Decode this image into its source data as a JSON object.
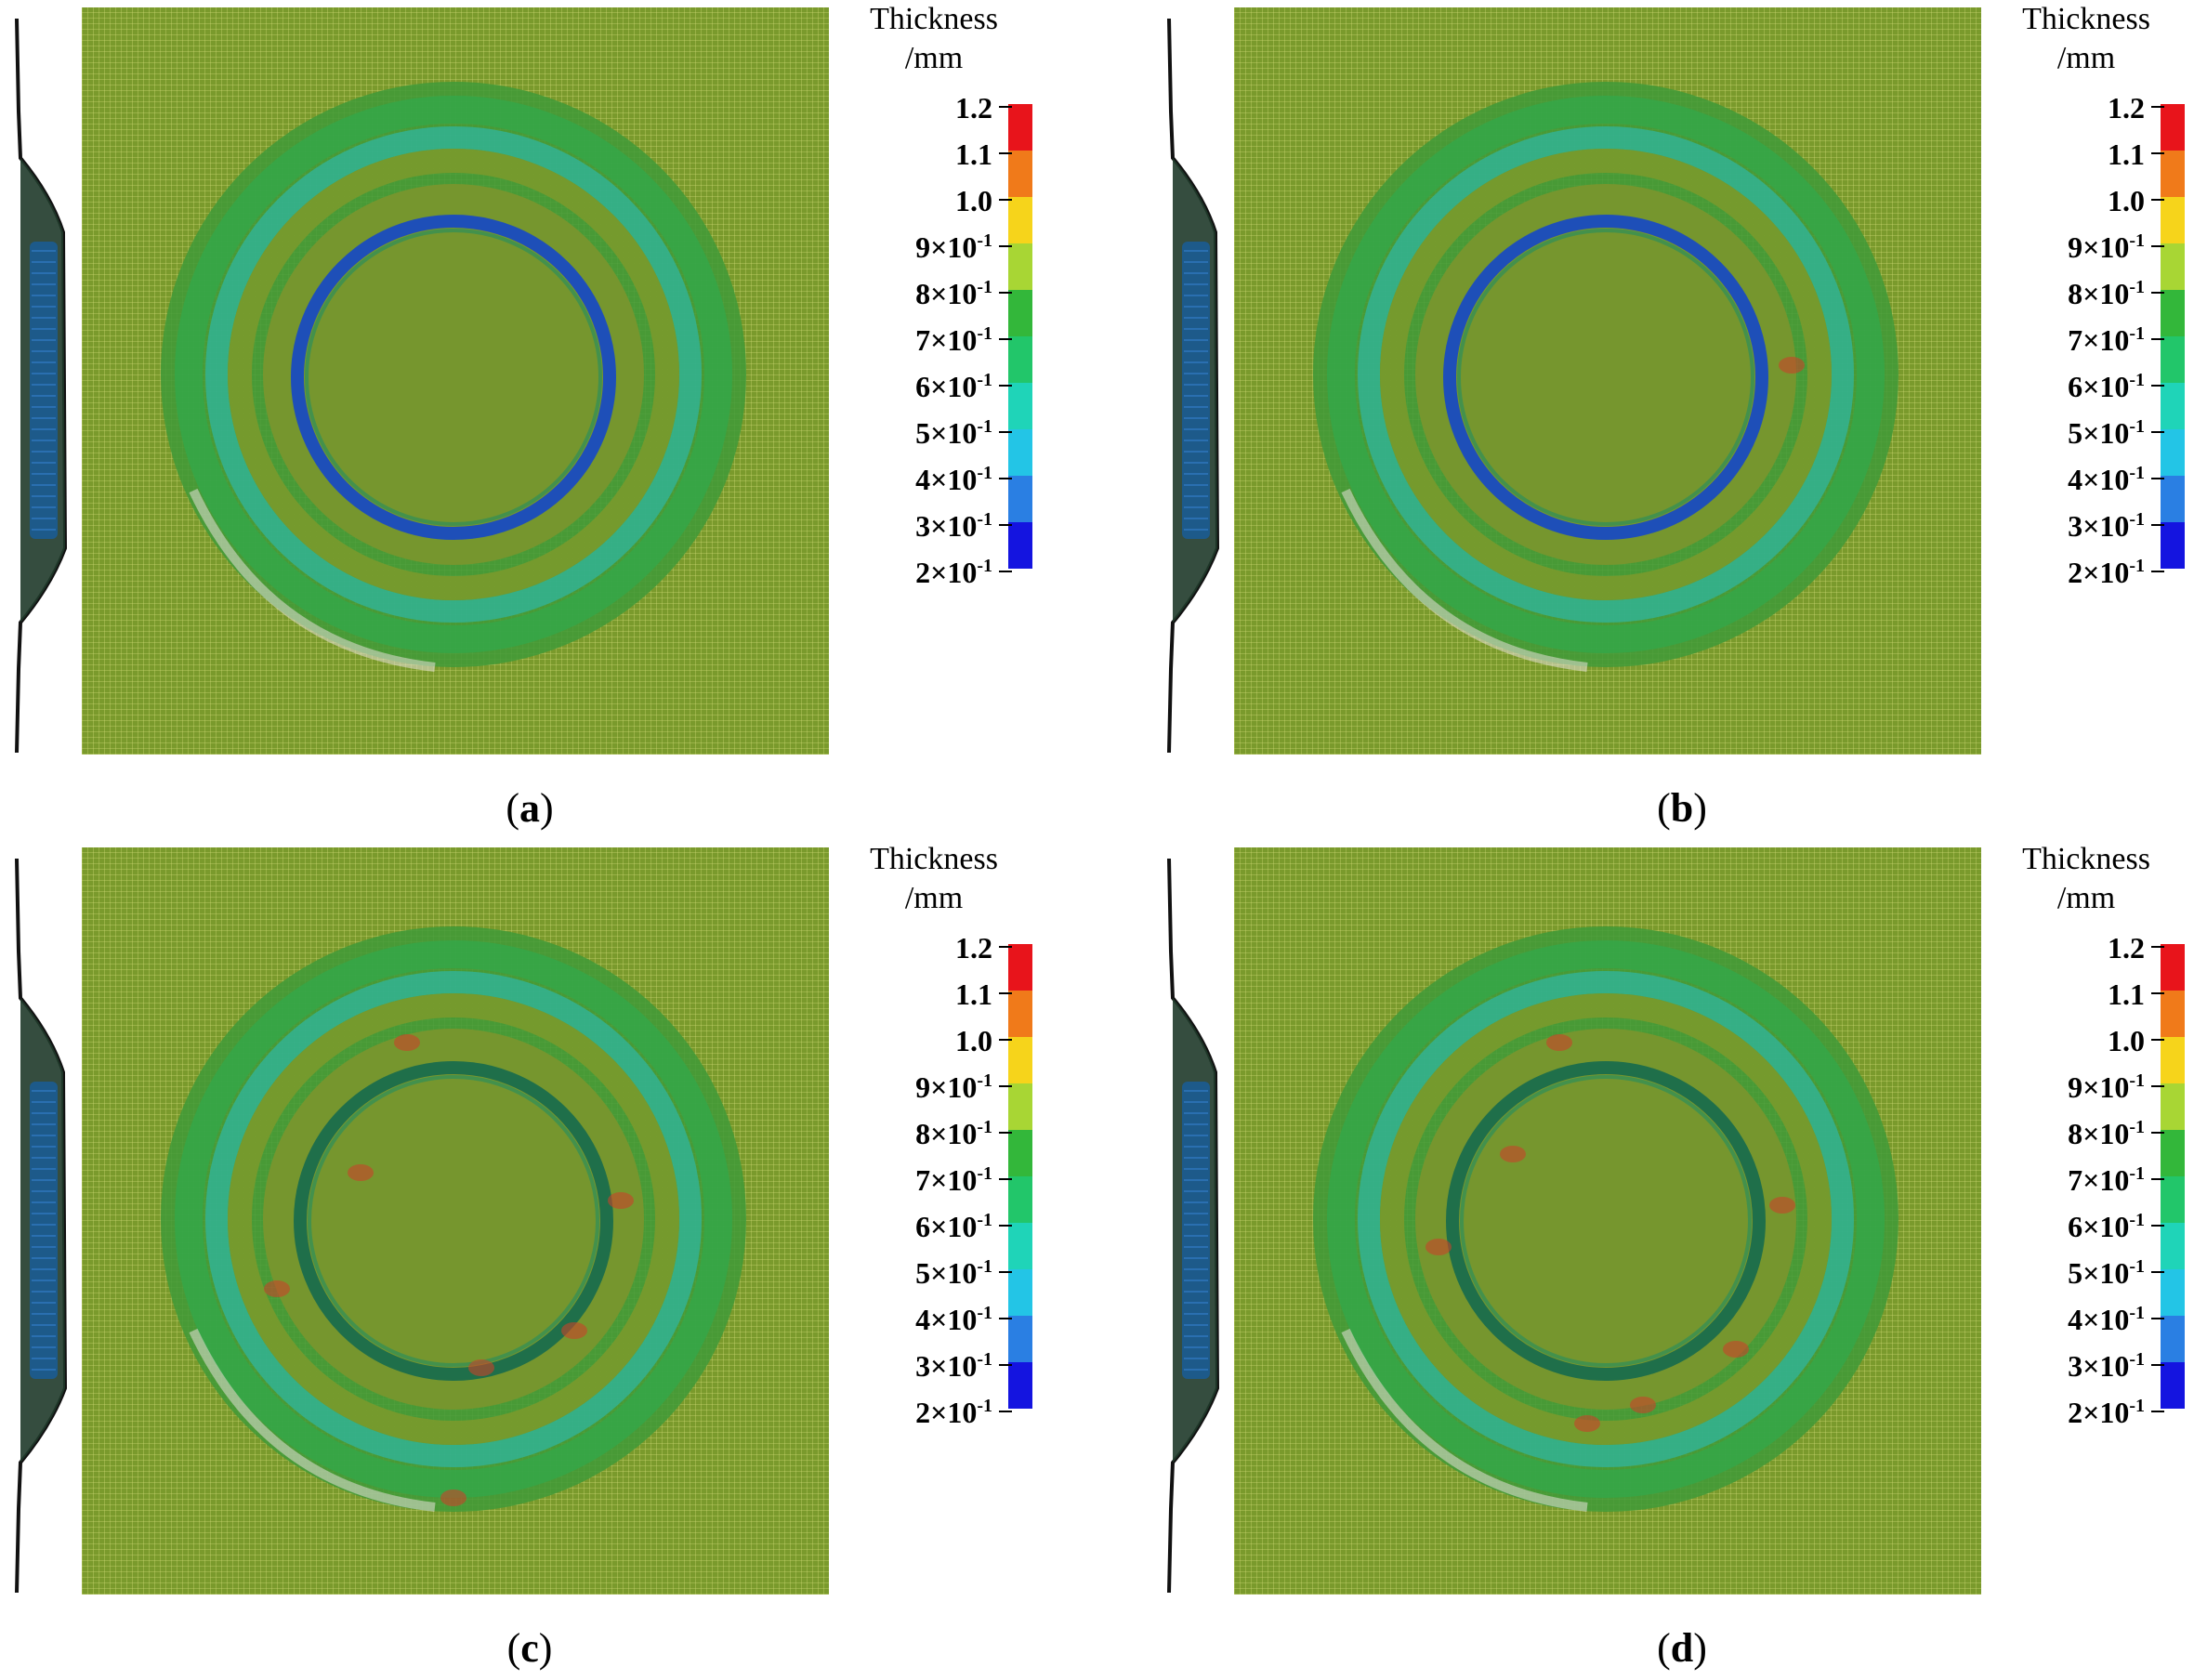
{
  "legend": {
    "title": "Thickness",
    "unit": "/mm",
    "labels": [
      "1.2",
      "1.1",
      "1.0",
      "9×10",
      "8×10",
      "7×10",
      "6×10",
      "5×10",
      "4×10",
      "3×10",
      "2×10"
    ],
    "exponent": "-1",
    "colors": [
      "#e8141b",
      "#f07a1a",
      "#f6d41b",
      "#a8d634",
      "#33b73a",
      "#22c66a",
      "#1fd4b8",
      "#23c5e6",
      "#2a7fe3",
      "#1414e0"
    ]
  },
  "panels": [
    {
      "id": "a",
      "caption_open": "(",
      "caption_letter": "a",
      "caption_close": ")"
    },
    {
      "id": "b",
      "caption_open": "(",
      "caption_letter": "b",
      "caption_close": ")"
    },
    {
      "id": "c",
      "caption_open": "(",
      "caption_letter": "c",
      "caption_close": ")"
    },
    {
      "id": "d",
      "caption_open": "(",
      "caption_letter": "d",
      "caption_close": ")"
    }
  ]
}
